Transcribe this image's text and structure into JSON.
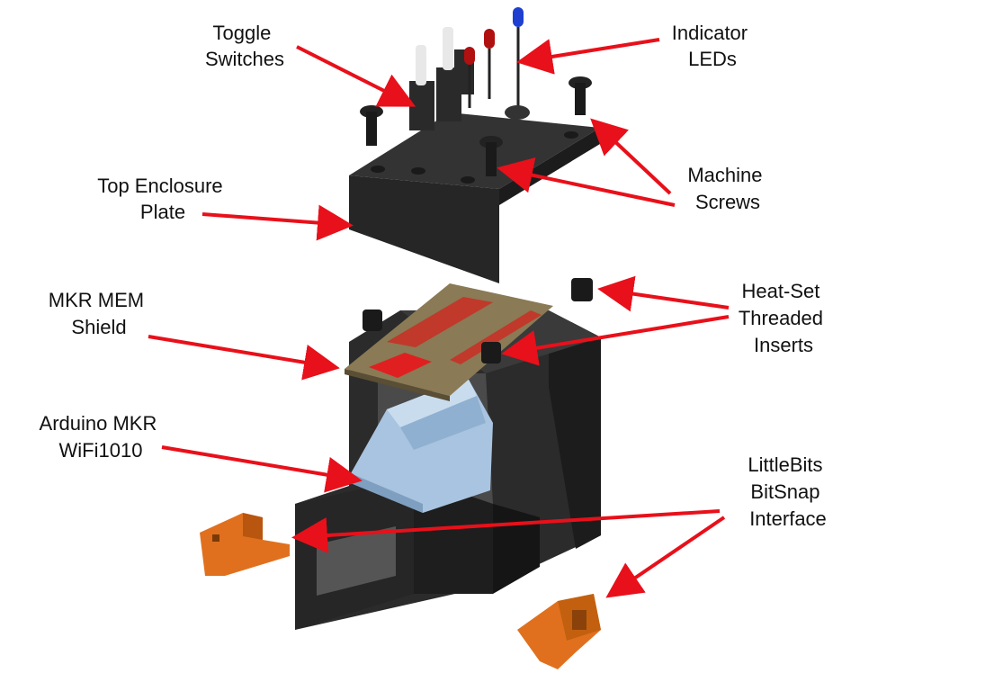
{
  "labels": {
    "toggle_switches": [
      "Toggle",
      "Switches"
    ],
    "indicator_leds": [
      "Indicator",
      "LEDs"
    ],
    "top_enclosure_plate": [
      "Top Enclosure",
      "Plate"
    ],
    "machine_screws": [
      "Machine",
      "Screws"
    ],
    "mkr_mem_shield": [
      "MKR MEM",
      "Shield"
    ],
    "heat_set_inserts": [
      "Heat-Set",
      "Threaded",
      "Inserts"
    ],
    "arduino_mkr": [
      "Arduino MKR",
      "WiFi1010"
    ],
    "littlebits": [
      "LittleBits",
      "BitSnap",
      "Interface"
    ]
  },
  "colors": {
    "arrow": "#e8101a",
    "enclosure": "#2b2b2b",
    "enclosure_light": "#3a3a3a",
    "pcb": "#8a7a55",
    "pcb_header": "#d42424",
    "arduino": "#a9c4e0",
    "littlebits": "#e0701e"
  }
}
